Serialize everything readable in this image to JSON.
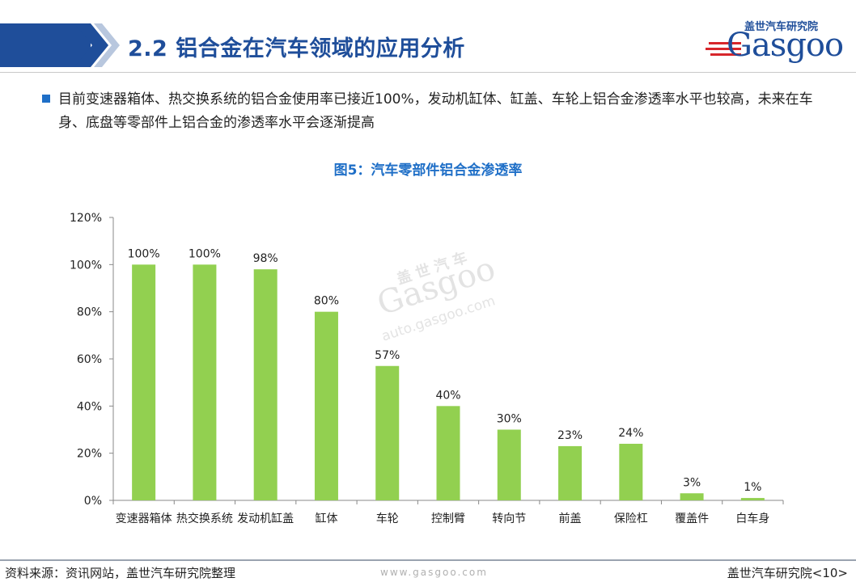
{
  "header": {
    "title": "2.2 铝合金在汽车领域的应用分析",
    "logo_cn": "盖世汽车研究院",
    "logo_en": "Gasgoo"
  },
  "intro": {
    "text": "目前变速器箱体、热交换系统的铝合金使用率已接近100%，发动机缸体、缸盖、车轮上铝合金渗透率水平也较高，未来在车身、底盘等零部件上铝合金的渗透率水平会逐渐提高"
  },
  "watermark": {
    "cn": "盖世汽车",
    "en": "Gasgoo",
    "url": "auto.gasgoo.com"
  },
  "footer": {
    "source": "资料来源：资讯网站，盖世汽车研究院整理",
    "url": "www.gasgoo.com",
    "org": "盖世汽车研究院<10>"
  },
  "chart_data": {
    "type": "bar",
    "title": "图5：汽车零部件铝合金渗透率",
    "xlabel": "",
    "ylabel": "",
    "categories": [
      "变速器箱体",
      "热交换系统",
      "发动机缸盖",
      "缸体",
      "车轮",
      "控制臂",
      "转向节",
      "前盖",
      "保险杠",
      "覆盖件",
      "白车身"
    ],
    "values": [
      100,
      100,
      98,
      80,
      57,
      40,
      30,
      23,
      24,
      3,
      1
    ],
    "value_labels": [
      "100%",
      "100%",
      "98%",
      "80%",
      "57%",
      "40%",
      "30%",
      "23%",
      "24%",
      "3%",
      "1%"
    ],
    "ylim": [
      0,
      120
    ],
    "yticks": [
      0,
      20,
      40,
      60,
      80,
      100,
      120
    ],
    "ytick_labels": [
      "0%",
      "20%",
      "40%",
      "60%",
      "80%",
      "100%",
      "120%"
    ],
    "grid": false,
    "legend": "none",
    "bar_color": "#92d050"
  }
}
